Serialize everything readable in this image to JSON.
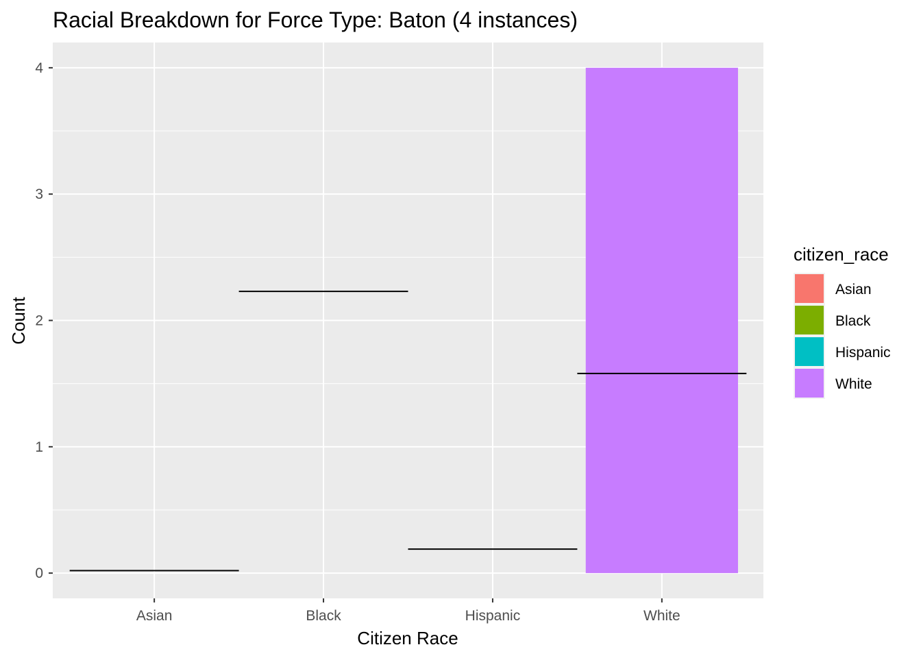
{
  "chart_data": {
    "type": "bar",
    "title": "Racial Breakdown for Force Type: Baton (4 instances)",
    "xlabel": "Citizen Race",
    "ylabel": "Count",
    "categories": [
      "Asian",
      "Black",
      "Hispanic",
      "White"
    ],
    "values": [
      0,
      0,
      0,
      4
    ],
    "reference_lines": [
      {
        "category": "Asian",
        "y": 0.02
      },
      {
        "category": "Black",
        "y": 2.23
      },
      {
        "category": "Hispanic",
        "y": 0.19
      },
      {
        "category": "White",
        "y": 1.58
      }
    ],
    "ylim": [
      -0.2,
      4.2
    ],
    "yticks": [
      0,
      1,
      2,
      3,
      4
    ],
    "grid": true,
    "panel_background": "#ebebeb",
    "line_color": "#000000",
    "legend": {
      "title": "citizen_race",
      "position": "right",
      "items": [
        {
          "label": "Asian",
          "color": "#F8766D"
        },
        {
          "label": "Black",
          "color": "#7CAE00"
        },
        {
          "label": "Hispanic",
          "color": "#00BFC4"
        },
        {
          "label": "White",
          "color": "#C77CFF"
        }
      ]
    }
  }
}
